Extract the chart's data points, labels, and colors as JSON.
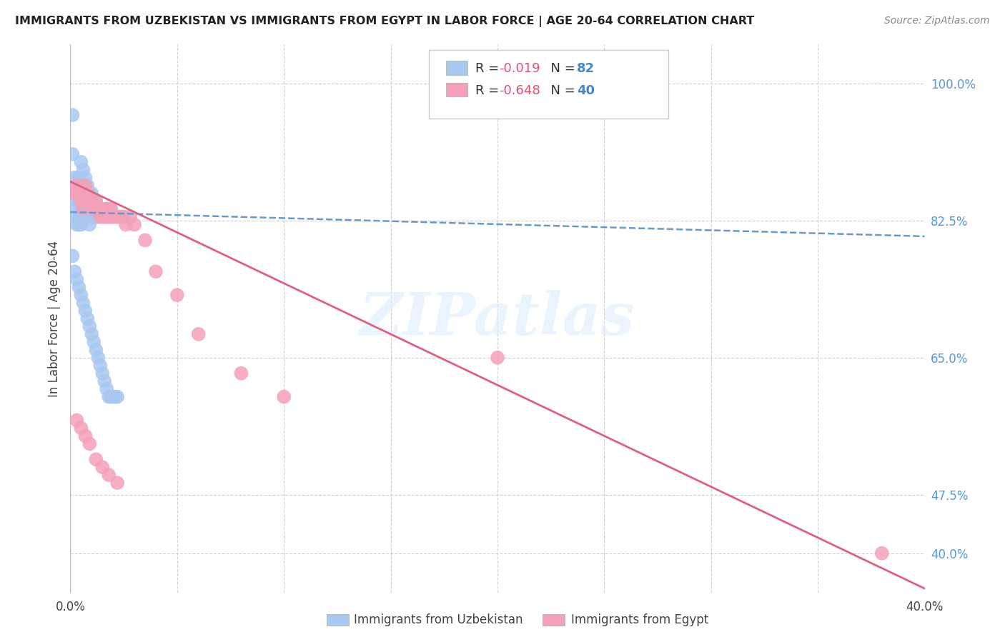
{
  "title": "IMMIGRANTS FROM UZBEKISTAN VS IMMIGRANTS FROM EGYPT IN LABOR FORCE | AGE 20-64 CORRELATION CHART",
  "source": "Source: ZipAtlas.com",
  "ylabel": "In Labor Force | Age 20-64",
  "xlim": [
    0.0,
    0.4
  ],
  "ylim": [
    0.35,
    1.05
  ],
  "uzbekistan_color": "#A8C8F0",
  "egypt_color": "#F4A0B8",
  "uzbekistan_trend_color": "#6699CC",
  "egypt_trend_color": "#E06080",
  "uzbekistan_R": "-0.019",
  "uzbekistan_N": "82",
  "egypt_R": "-0.648",
  "egypt_N": "40",
  "watermark_text": "ZIPatlas",
  "legend_uzbekistan": "Immigrants from Uzbekistan",
  "legend_egypt": "Immigrants from Egypt",
  "grid_color": "#d0d0d0",
  "ytick_positions": [
    0.4,
    0.475,
    0.65,
    0.825,
    1.0
  ],
  "ytick_labels": [
    "40.0%",
    "47.5%",
    "65.0%",
    "82.5%",
    "100.0%"
  ],
  "uzbekistan_scatter_x": [
    0.001,
    0.001,
    0.002,
    0.002,
    0.002,
    0.003,
    0.003,
    0.003,
    0.003,
    0.004,
    0.004,
    0.004,
    0.004,
    0.005,
    0.005,
    0.005,
    0.005,
    0.006,
    0.006,
    0.006,
    0.007,
    0.007,
    0.007,
    0.008,
    0.008,
    0.008,
    0.009,
    0.009,
    0.009,
    0.01,
    0.01,
    0.01,
    0.011,
    0.011,
    0.011,
    0.012,
    0.012,
    0.012,
    0.013,
    0.013,
    0.014,
    0.014,
    0.015,
    0.015,
    0.016,
    0.016,
    0.017,
    0.017,
    0.018,
    0.018,
    0.019,
    0.019,
    0.02,
    0.021,
    0.022,
    0.023,
    0.024,
    0.025,
    0.001,
    0.002,
    0.003,
    0.004,
    0.005,
    0.006,
    0.007,
    0.008,
    0.009,
    0.01,
    0.011,
    0.012,
    0.013,
    0.014,
    0.015,
    0.016,
    0.017,
    0.018,
    0.019,
    0.02,
    0.021,
    0.022
  ],
  "uzbekistan_scatter_y": [
    0.96,
    0.91,
    0.88,
    0.86,
    0.84,
    0.87,
    0.85,
    0.83,
    0.82,
    0.88,
    0.85,
    0.83,
    0.82,
    0.9,
    0.87,
    0.84,
    0.82,
    0.89,
    0.86,
    0.83,
    0.88,
    0.85,
    0.83,
    0.87,
    0.84,
    0.83,
    0.86,
    0.84,
    0.82,
    0.86,
    0.84,
    0.83,
    0.85,
    0.84,
    0.83,
    0.85,
    0.84,
    0.83,
    0.84,
    0.83,
    0.84,
    0.83,
    0.84,
    0.83,
    0.84,
    0.83,
    0.84,
    0.83,
    0.84,
    0.83,
    0.84,
    0.83,
    0.83,
    0.83,
    0.83,
    0.83,
    0.83,
    0.83,
    0.78,
    0.76,
    0.75,
    0.74,
    0.73,
    0.72,
    0.71,
    0.7,
    0.69,
    0.68,
    0.67,
    0.66,
    0.65,
    0.64,
    0.63,
    0.62,
    0.61,
    0.6,
    0.6,
    0.6,
    0.6,
    0.6
  ],
  "egypt_scatter_x": [
    0.002,
    0.003,
    0.004,
    0.005,
    0.006,
    0.007,
    0.008,
    0.009,
    0.01,
    0.011,
    0.012,
    0.013,
    0.014,
    0.015,
    0.016,
    0.017,
    0.018,
    0.019,
    0.02,
    0.022,
    0.024,
    0.026,
    0.028,
    0.03,
    0.035,
    0.04,
    0.05,
    0.06,
    0.08,
    0.1,
    0.003,
    0.005,
    0.007,
    0.009,
    0.012,
    0.015,
    0.018,
    0.022,
    0.38,
    0.2
  ],
  "egypt_scatter_y": [
    0.86,
    0.87,
    0.86,
    0.85,
    0.84,
    0.87,
    0.86,
    0.85,
    0.85,
    0.84,
    0.85,
    0.84,
    0.83,
    0.84,
    0.83,
    0.84,
    0.83,
    0.84,
    0.83,
    0.83,
    0.83,
    0.82,
    0.83,
    0.82,
    0.8,
    0.76,
    0.73,
    0.68,
    0.63,
    0.6,
    0.57,
    0.56,
    0.55,
    0.54,
    0.52,
    0.51,
    0.5,
    0.49,
    0.4,
    0.65
  ],
  "uzbekistan_trend_x": [
    0.0,
    0.4
  ],
  "uzbekistan_trend_y": [
    0.836,
    0.805
  ],
  "egypt_trend_x": [
    0.0,
    0.4
  ],
  "egypt_trend_y": [
    0.875,
    0.355
  ]
}
